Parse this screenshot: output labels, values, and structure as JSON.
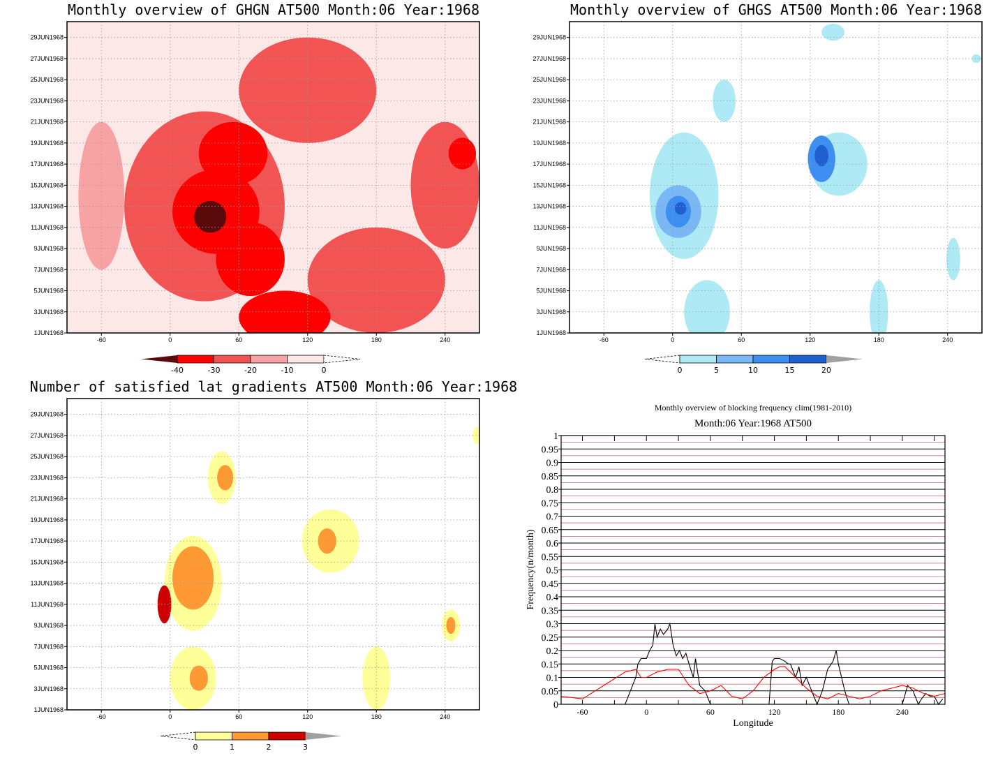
{
  "panels": {
    "ghgn": {
      "title": "Monthly overview of GHGN AT500 Month:06 Year:1968",
      "ytick_labels": [
        "1JUN1968",
        "3JUN1968",
        "5JUN1968",
        "7JUN1968",
        "9JUN1968",
        "11JUN1968",
        "13JUN1968",
        "15JUN1968",
        "17JUN1968",
        "19JUN1968",
        "21JUN1968",
        "23JUN1968",
        "25JUN1968",
        "27JUN1968",
        "29JUN1968"
      ],
      "xtick_labels": [
        "-60",
        "0",
        "60",
        "120",
        "180",
        "240"
      ],
      "colorbar": {
        "labels": [
          "-40",
          "-30",
          "-20",
          "-10",
          "0"
        ],
        "colors": [
          "#5a0a0a",
          "#ff0000",
          "#f25454",
          "#f7a3a3",
          "#fde8e8"
        ]
      }
    },
    "ghgs": {
      "title": "Monthly overview of GHGS AT500 Month:06 Year:1968",
      "ytick_labels": [
        "1JUN1968",
        "3JUN1968",
        "5JUN1968",
        "7JUN1968",
        "9JUN1968",
        "11JUN1968",
        "13JUN1968",
        "15JUN1968",
        "17JUN1968",
        "19JUN1968",
        "21JUN1968",
        "23JUN1968",
        "25JUN1968",
        "27JUN1968",
        "29JUN1968"
      ],
      "xtick_labels": [
        "-60",
        "0",
        "60",
        "120",
        "180",
        "240"
      ],
      "colorbar": {
        "labels": [
          "0",
          "5",
          "10",
          "15",
          "20"
        ],
        "colors": [
          "#aeeaf5",
          "#7ab8f5",
          "#3c8ef0",
          "#1f5fd0",
          "#a0a0a0"
        ]
      }
    },
    "grad": {
      "title": "Number of satisfied lat gradients AT500 Month:06 Year:1968",
      "ytick_labels": [
        "1JUN1968",
        "3JUN1968",
        "5JUN1968",
        "7JUN1968",
        "9JUN1968",
        "11JUN1968",
        "13JUN1968",
        "15JUN1968",
        "17JUN1968",
        "19JUN1968",
        "21JUN1968",
        "23JUN1968",
        "25JUN1968",
        "27JUN1968",
        "29JUN1968"
      ],
      "xtick_labels": [
        "-60",
        "0",
        "60",
        "120",
        "180",
        "240"
      ],
      "colorbar": {
        "labels": [
          "0",
          "1",
          "2",
          "3"
        ],
        "colors": [
          "#ffff99",
          "#ff9933",
          "#cc0000",
          "#a0a0a0"
        ]
      }
    },
    "freq": {
      "title": "Monthly overview of blocking frequency clim(1981-2010)",
      "subtitle": "Month:06 Year:1968  AT500",
      "xlabel": "Longitude",
      "ylabel": "Frequency(n/month)"
    }
  },
  "chart_data": [
    {
      "type": "heatmap",
      "title": "Monthly overview of GHGN AT500 Month:06 Year:1968",
      "x_range": [
        -90,
        270
      ],
      "y_range": [
        "1JUN1968",
        "30JUN1968"
      ],
      "levels": [
        -40,
        -30,
        -20,
        -10,
        0
      ],
      "blobs": [
        {
          "lon": 35,
          "day": 12.0,
          "r_lon": 14,
          "r_day": 1.5,
          "level": -40
        },
        {
          "lon": 40,
          "day": 12.5,
          "r_lon": 38,
          "r_day": 4.0,
          "level": -30
        },
        {
          "lon": 55,
          "day": 18.0,
          "r_lon": 30,
          "r_day": 3.0,
          "level": -30
        },
        {
          "lon": 70,
          "day": 8.0,
          "r_lon": 30,
          "r_day": 3.5,
          "level": -30
        },
        {
          "lon": 100,
          "day": 2.5,
          "r_lon": 40,
          "r_day": 2.5,
          "level": -30
        },
        {
          "lon": 255,
          "day": 18.0,
          "r_lon": 12,
          "r_day": 1.5,
          "level": -30
        },
        {
          "lon": 30,
          "day": 13.0,
          "r_lon": 70,
          "r_day": 9.0,
          "level": -20
        },
        {
          "lon": 180,
          "day": 6.0,
          "r_lon": 60,
          "r_day": 5.0,
          "level": -20
        },
        {
          "lon": 240,
          "day": 15.0,
          "r_lon": 30,
          "r_day": 6.0,
          "level": -20
        },
        {
          "lon": 120,
          "day": 24.0,
          "r_lon": 60,
          "r_day": 5.0,
          "level": -20
        },
        {
          "lon": -60,
          "day": 14.0,
          "r_lon": 20,
          "r_day": 7.0,
          "level": -10
        }
      ]
    },
    {
      "type": "heatmap",
      "title": "Monthly overview of GHGS AT500 Month:06 Year:1968",
      "x_range": [
        -90,
        270
      ],
      "y_range": [
        "1JUN1968",
        "30JUN1968"
      ],
      "levels": [
        0,
        5,
        10,
        15,
        20
      ],
      "blobs": [
        {
          "lon": 5,
          "day": 12.5,
          "r_lon": 20,
          "r_day": 2.5,
          "level": 5
        },
        {
          "lon": 5,
          "day": 12.5,
          "r_lon": 11,
          "r_day": 1.5,
          "level": 10
        },
        {
          "lon": 7,
          "day": 12.8,
          "r_lon": 5,
          "r_day": 0.6,
          "level": 15
        },
        {
          "lon": 130,
          "day": 17.5,
          "r_lon": 12,
          "r_day": 2.2,
          "level": 10
        },
        {
          "lon": 130,
          "day": 17.8,
          "r_lon": 6,
          "r_day": 1.0,
          "level": 15
        },
        {
          "lon": 10,
          "day": 14.0,
          "r_lon": 30,
          "r_day": 6.0,
          "level": 0
        },
        {
          "lon": 145,
          "day": 17.0,
          "r_lon": 25,
          "r_day": 3.0,
          "level": 0
        },
        {
          "lon": 45,
          "day": 23.0,
          "r_lon": 10,
          "r_day": 2.0,
          "level": 0
        },
        {
          "lon": 30,
          "day": 3.0,
          "r_lon": 20,
          "r_day": 3.0,
          "level": 0
        },
        {
          "lon": 180,
          "day": 3.0,
          "r_lon": 8,
          "r_day": 3.0,
          "level": 0
        },
        {
          "lon": 245,
          "day": 8.0,
          "r_lon": 6,
          "r_day": 2.0,
          "level": 0
        },
        {
          "lon": 140,
          "day": 29.5,
          "r_lon": 10,
          "r_day": 0.8,
          "level": 0
        },
        {
          "lon": 265,
          "day": 27.0,
          "r_lon": 4,
          "r_day": 0.4,
          "level": 0
        }
      ]
    },
    {
      "type": "heatmap",
      "title": "Number of satisfied lat gradients AT500 Month:06 Year:1968",
      "x_range": [
        -90,
        270
      ],
      "y_range": [
        "1JUN1968",
        "30JUN1968"
      ],
      "levels": [
        0,
        1,
        2,
        3
      ],
      "blobs": [
        {
          "lon": 20,
          "day": 13.0,
          "r_lon": 25,
          "r_day": 4.5,
          "level": 0
        },
        {
          "lon": 45,
          "day": 23.0,
          "r_lon": 12,
          "r_day": 2.5,
          "level": 0
        },
        {
          "lon": 140,
          "day": 17.0,
          "r_lon": 25,
          "r_day": 3.0,
          "level": 0
        },
        {
          "lon": 20,
          "day": 4.0,
          "r_lon": 20,
          "r_day": 3.0,
          "level": 0
        },
        {
          "lon": 180,
          "day": 4.0,
          "r_lon": 12,
          "r_day": 3.0,
          "level": 0
        },
        {
          "lon": 245,
          "day": 9.0,
          "r_lon": 8,
          "r_day": 1.5,
          "level": 0
        },
        {
          "lon": 268,
          "day": 27.0,
          "r_lon": 4,
          "r_day": 0.8,
          "level": 0
        },
        {
          "lon": 20,
          "day": 13.5,
          "r_lon": 18,
          "r_day": 3.0,
          "level": 1
        },
        {
          "lon": 48,
          "day": 23.0,
          "r_lon": 7,
          "r_day": 1.2,
          "level": 1
        },
        {
          "lon": 137,
          "day": 17.0,
          "r_lon": 8,
          "r_day": 1.2,
          "level": 1
        },
        {
          "lon": 25,
          "day": 4.0,
          "r_lon": 8,
          "r_day": 1.2,
          "level": 1
        },
        {
          "lon": 245,
          "day": 9.0,
          "r_lon": 4,
          "r_day": 0.8,
          "level": 1
        },
        {
          "lon": -5,
          "day": 11.0,
          "r_lon": 6,
          "r_day": 1.8,
          "level": 2
        }
      ]
    },
    {
      "type": "line",
      "title": "Monthly overview of blocking frequency clim(1981-2010)",
      "subtitle": "Month:06 Year:1968  AT500",
      "xlabel": "Longitude",
      "ylabel": "Frequency(n/month)",
      "xlim": [
        -80,
        280
      ],
      "ylim": [
        0,
        1
      ],
      "xticks": [
        "-60",
        "0",
        "60",
        "120",
        "180",
        "240"
      ],
      "yticks": [
        "0",
        "0.05",
        "0.1",
        "0.15",
        "0.2",
        "0.25",
        "0.3",
        "0.35",
        "0.4",
        "0.45",
        "0.5",
        "0.55",
        "0.6",
        "0.65",
        "0.7",
        "0.75",
        "0.8",
        "0.85",
        "0.9",
        "0.95",
        "1"
      ],
      "series": [
        {
          "color": "#000000",
          "x": [
            -80,
            -20,
            -15,
            -10,
            -8,
            -5,
            0,
            3,
            6,
            8,
            10,
            13,
            16,
            20,
            22,
            25,
            28,
            31,
            34,
            37,
            40,
            44,
            46,
            50,
            55,
            60,
            62,
            66,
            70,
            100,
            115,
            118,
            120,
            125,
            130,
            133,
            135,
            140,
            143,
            146,
            150,
            155,
            160,
            165,
            170,
            175,
            178,
            180,
            183,
            186,
            190,
            200,
            240,
            245,
            250,
            255,
            258,
            262,
            266,
            270,
            274,
            278
          ],
          "y": [
            0,
            0,
            0.05,
            0.1,
            0.15,
            0.17,
            0.17,
            0.2,
            0.22,
            0.3,
            0.25,
            0.28,
            0.26,
            0.28,
            0.3,
            0.22,
            0.18,
            0.2,
            0.17,
            0.19,
            0.15,
            0.1,
            0.17,
            0.07,
            0.05,
            0,
            0,
            0,
            0,
            0,
            0,
            0.16,
            0.17,
            0.17,
            0.16,
            0.15,
            0.15,
            0.1,
            0.14,
            0.07,
            0.1,
            0.05,
            0,
            0.05,
            0.13,
            0.16,
            0.2,
            0.15,
            0.1,
            0.05,
            0,
            0,
            0,
            0.07,
            0.05,
            0,
            0.02,
            0.04,
            0.03,
            0.03,
            0,
            0.02
          ]
        },
        {
          "color": "#ff0000",
          "x": [
            -80,
            -60,
            -40,
            -20,
            -10,
            -5,
            0,
            10,
            20,
            30,
            40,
            50,
            60,
            70,
            80,
            90,
            100,
            110,
            120,
            125,
            130,
            140,
            150,
            160,
            170,
            180,
            190,
            200,
            210,
            220,
            230,
            240,
            250,
            260,
            270,
            280
          ],
          "y": [
            0.03,
            0.02,
            0.07,
            0.12,
            0.13,
            0.1,
            0.1,
            0.12,
            0.13,
            0.13,
            0.07,
            0.04,
            0.05,
            0.07,
            0.03,
            0.02,
            0.05,
            0.1,
            0.13,
            0.14,
            0.14,
            0.1,
            0.06,
            0.03,
            0.02,
            0.04,
            0.03,
            0.02,
            0.03,
            0.05,
            0.06,
            0.07,
            0.06,
            0.04,
            0.03,
            0.04
          ]
        }
      ]
    }
  ]
}
